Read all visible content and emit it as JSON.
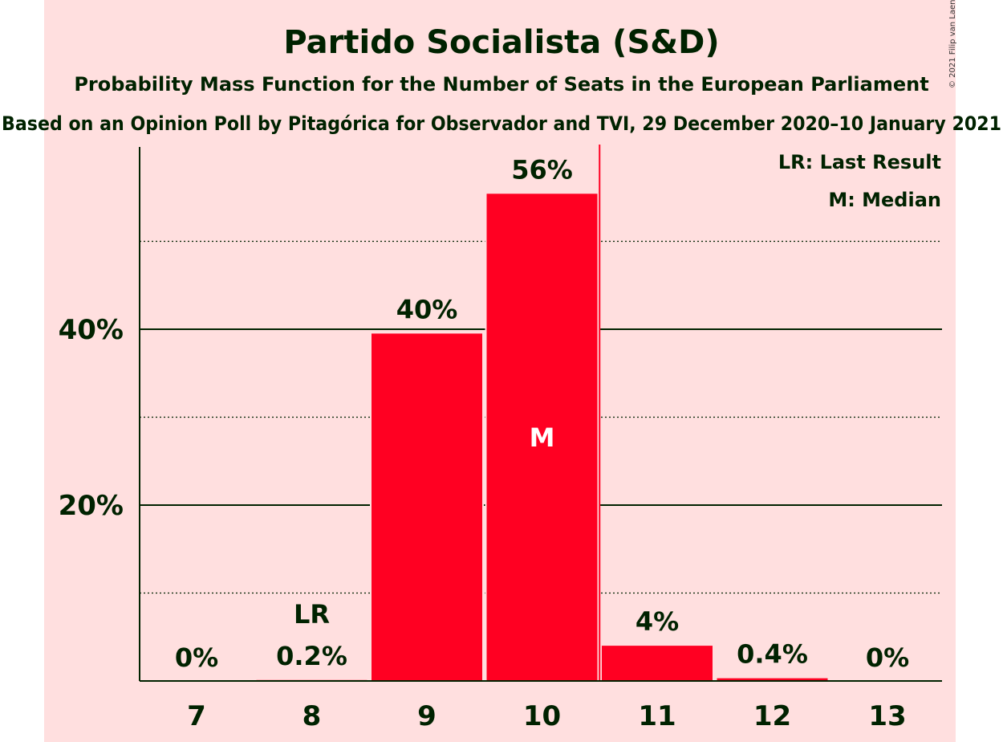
{
  "colors": {
    "panel_background": "#ffdfdf",
    "bar": "#ff0022",
    "text": "#002200",
    "majority_line": "#ff0022"
  },
  "copyright": "© 2021 Filip van Laenen",
  "chart_data": {
    "type": "bar",
    "title": "Partido Socialista (S&D)",
    "subtitle": "Probability Mass Function for the Number of Seats in the European Parliament",
    "subtitle2": "Based on an Opinion Poll by Pitagórica for Observador and TVI, 29 December 2020–10 January 2021",
    "categories": [
      "7",
      "8",
      "9",
      "10",
      "11",
      "12",
      "13"
    ],
    "values": [
      0,
      0.2,
      39.6,
      55.5,
      4.1,
      0.4,
      0
    ],
    "value_labels": [
      "0%",
      "0.2%",
      "40%",
      "56%",
      "4%",
      "0.4%",
      "0%"
    ],
    "ylim": [
      0,
      60
    ],
    "yticks_major": [
      20,
      40
    ],
    "yticks_major_labels": [
      "20%",
      "40%"
    ],
    "gridlines_minor": [
      10,
      30,
      50
    ],
    "last_result": {
      "category": "8",
      "label": "LR"
    },
    "median": {
      "category": "10",
      "label": "M"
    },
    "majority_after_category": "10",
    "legend": [
      "LR: Last Result",
      "M: Median"
    ],
    "legend_position": "top-right",
    "grid": true
  }
}
